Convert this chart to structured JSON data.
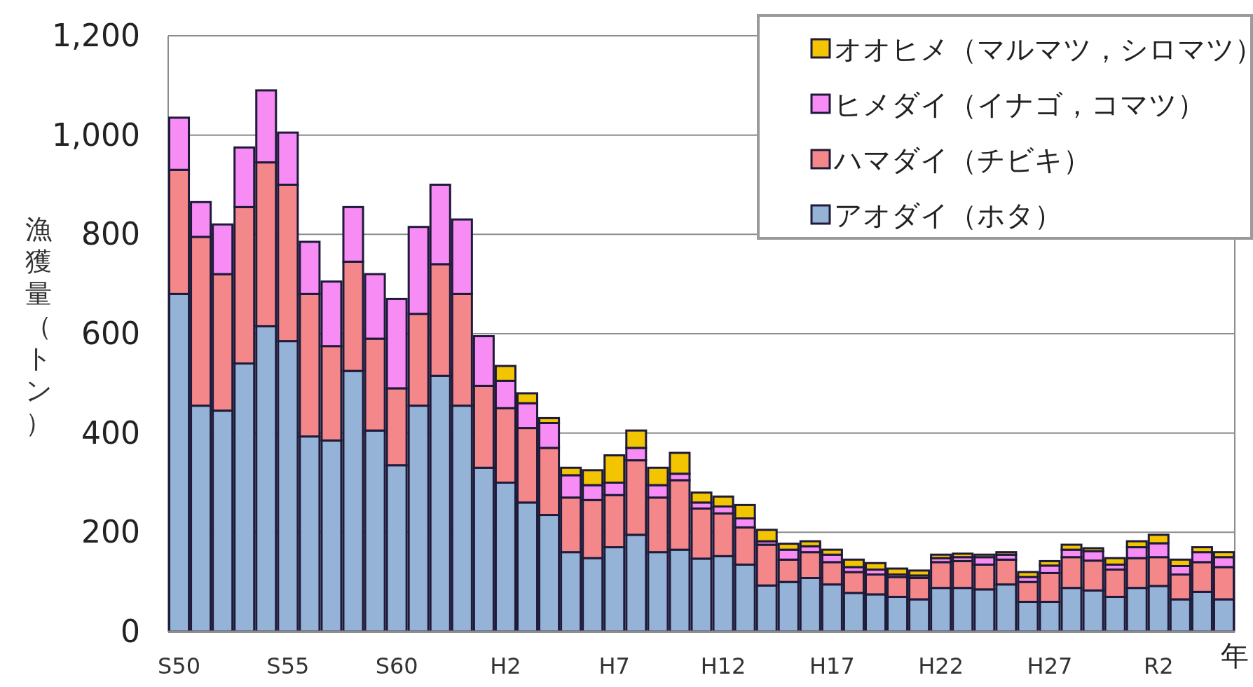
{
  "chart_data": {
    "type": "bar",
    "stacked": true,
    "ylabel": "漁獲量（トン）",
    "xlabel": "年",
    "categories": [
      "S50",
      null,
      null,
      null,
      null,
      "S55",
      null,
      null,
      null,
      null,
      "S60",
      null,
      null,
      null,
      null,
      "H2",
      null,
      null,
      null,
      null,
      "H7",
      null,
      null,
      null,
      null,
      "H12",
      null,
      null,
      null,
      null,
      "H17",
      null,
      null,
      null,
      null,
      "H22",
      null,
      null,
      null,
      null,
      "H27",
      null,
      null,
      null,
      null,
      "R2",
      null,
      null,
      null
    ],
    "ylim": [
      0,
      1200
    ],
    "yticks": [
      0,
      200,
      400,
      600,
      800,
      {
        "value": 1000,
        "label": "1,000"
      },
      {
        "value": 1200,
        "label": "1,200"
      }
    ],
    "grid": "y",
    "legend": "top right",
    "series": [
      {
        "name": "アオダイ（ホタ）",
        "color": "#95b3d7",
        "values": [
          680,
          455,
          445,
          540,
          615,
          585,
          393,
          385,
          525,
          405,
          335,
          455,
          515,
          455,
          330,
          300,
          260,
          235,
          160,
          148,
          170,
          195,
          160,
          165,
          147,
          152,
          135,
          93,
          100,
          108,
          95,
          78,
          75,
          70,
          65,
          88,
          88,
          85,
          95,
          60,
          60,
          88,
          83,
          70,
          88,
          92,
          65,
          80,
          65
        ]
      },
      {
        "name": "ハマダイ（チビキ）",
        "color": "#f4878a",
        "values": [
          250,
          340,
          275,
          315,
          330,
          315,
          287,
          190,
          220,
          185,
          155,
          185,
          225,
          225,
          165,
          150,
          150,
          135,
          110,
          117,
          105,
          150,
          110,
          140,
          101,
          86,
          75,
          82,
          45,
          52,
          45,
          42,
          40,
          40,
          43,
          52,
          54,
          50,
          50,
          40,
          58,
          62,
          60,
          55,
          60,
          58,
          50,
          60,
          65
        ]
      },
      {
        "name": "ヒメダイ（イナゴ，コマツ）",
        "color": "#f78cf4",
        "values": [
          105,
          70,
          100,
          120,
          145,
          105,
          105,
          130,
          110,
          130,
          180,
          175,
          160,
          150,
          100,
          55,
          50,
          50,
          45,
          30,
          25,
          25,
          25,
          13,
          12,
          14,
          18,
          7,
          20,
          12,
          15,
          10,
          10,
          5,
          5,
          8,
          8,
          15,
          10,
          10,
          15,
          15,
          19,
          10,
          22,
          28,
          17,
          20,
          20
        ]
      },
      {
        "name": "オオヒメ（マルマツ，シロマツ）",
        "color": "#f2c500",
        "values": [
          0,
          0,
          0,
          0,
          0,
          0,
          0,
          0,
          0,
          0,
          0,
          0,
          0,
          0,
          0,
          30,
          20,
          10,
          15,
          30,
          55,
          35,
          35,
          42,
          20,
          20,
          27,
          23,
          12,
          10,
          10,
          15,
          13,
          12,
          10,
          7,
          7,
          5,
          5,
          10,
          9,
          10,
          6,
          13,
          12,
          17,
          13,
          10,
          10
        ]
      }
    ]
  }
}
